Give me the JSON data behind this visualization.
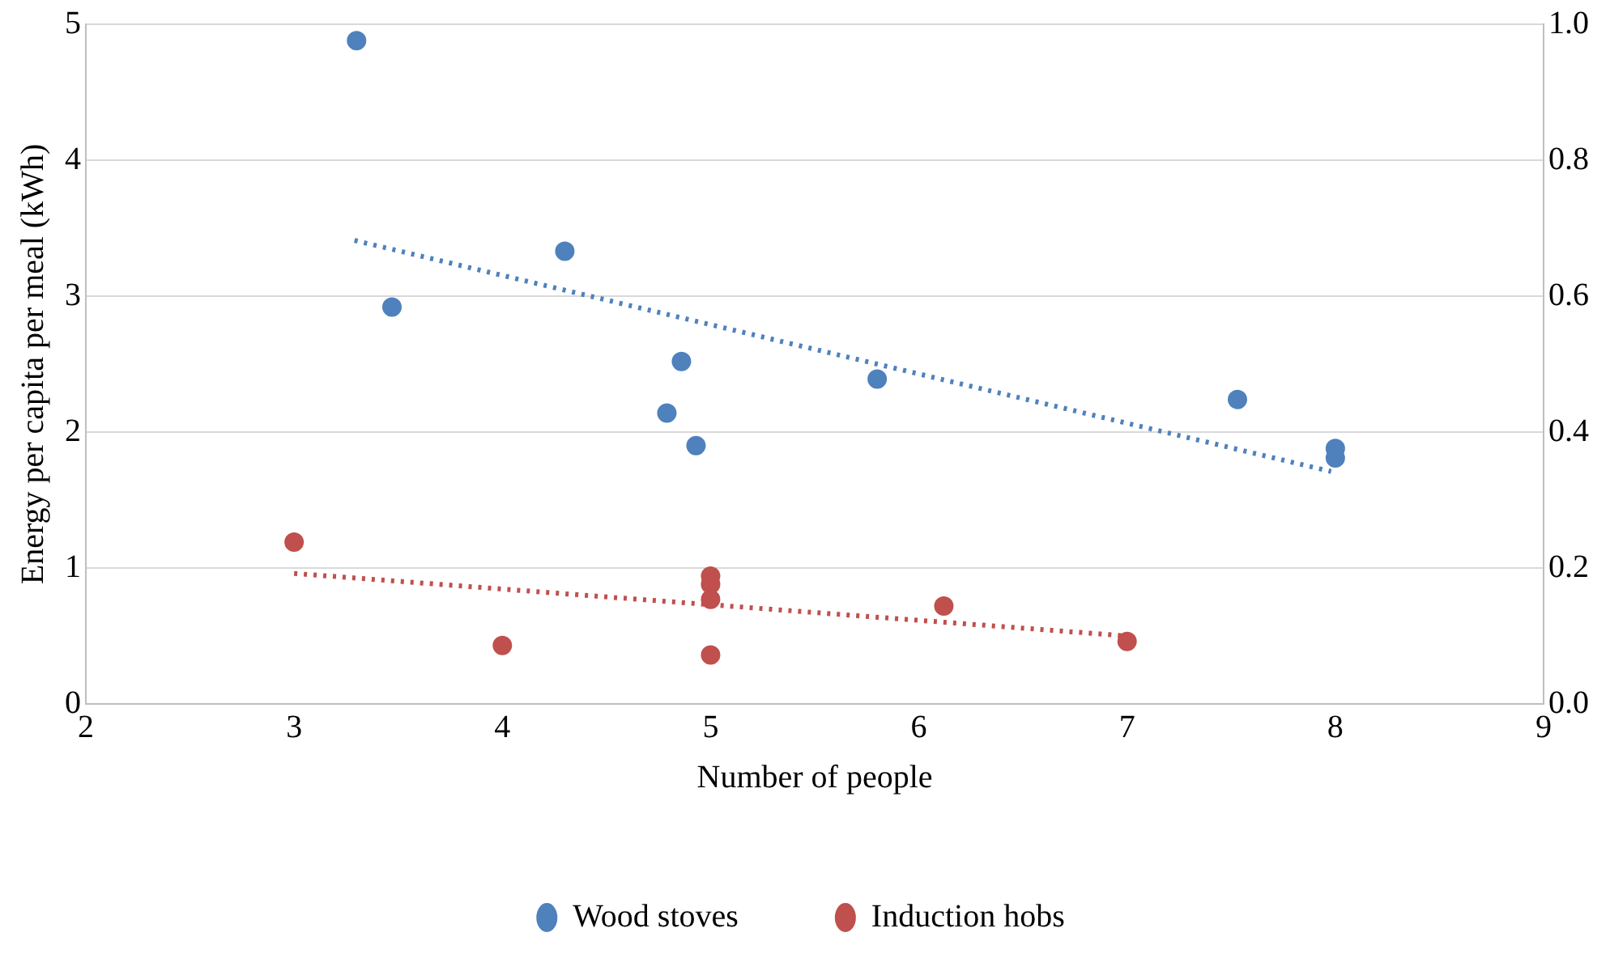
{
  "chart_data": {
    "type": "scatter",
    "xlabel": "Number of people",
    "ylabel": "Energy per capita per meal (kWh)",
    "xlim": [
      2,
      9
    ],
    "xticks": [
      2,
      3,
      4,
      5,
      6,
      7,
      8,
      9
    ],
    "ylim": [
      0,
      5
    ],
    "yticks": [
      0,
      1,
      2,
      3,
      4,
      5
    ],
    "y2lim": [
      0,
      1
    ],
    "y2ticks": [
      {
        "value": 0,
        "label": "0.0"
      },
      {
        "value": 0.2,
        "label": "0.2"
      },
      {
        "value": 0.4,
        "label": "0.4"
      },
      {
        "value": 0.6,
        "label": "0.6"
      },
      {
        "value": 0.8,
        "label": "0.8"
      },
      {
        "value": 1,
        "label": "1.0"
      }
    ],
    "grid": "y",
    "legend": "bottom",
    "marker": "circle",
    "series": [
      {
        "name": "Wood stoves",
        "color": "#4f81bd",
        "x": [
          3.3,
          3.47,
          4.3,
          4.86,
          4.79,
          4.93,
          5.8,
          7.53,
          8.0,
          8.0
        ],
        "values": [
          4.88,
          2.92,
          3.33,
          2.52,
          2.14,
          1.9,
          2.39,
          2.24,
          1.88,
          1.81
        ]
      },
      {
        "name": "Induction hobs",
        "color": "#c0504d",
        "x": [
          3,
          4,
          5,
          5,
          5,
          5,
          6.12,
          7
        ],
        "values": [
          1.19,
          0.43,
          0.94,
          0.88,
          0.77,
          0.36,
          0.72,
          0.46
        ]
      },
      {
        "type": "line",
        "color": "#4f81bd",
        "line_style": "dotted",
        "marker": "none",
        "x": [
          3.29,
          7.98
        ],
        "values": [
          3.41,
          1.71
        ]
      },
      {
        "type": "line",
        "color": "#c0504d",
        "line_style": "dotted",
        "marker": "none",
        "x": [
          3,
          7
        ],
        "values": [
          0.96,
          0.5
        ]
      }
    ]
  }
}
